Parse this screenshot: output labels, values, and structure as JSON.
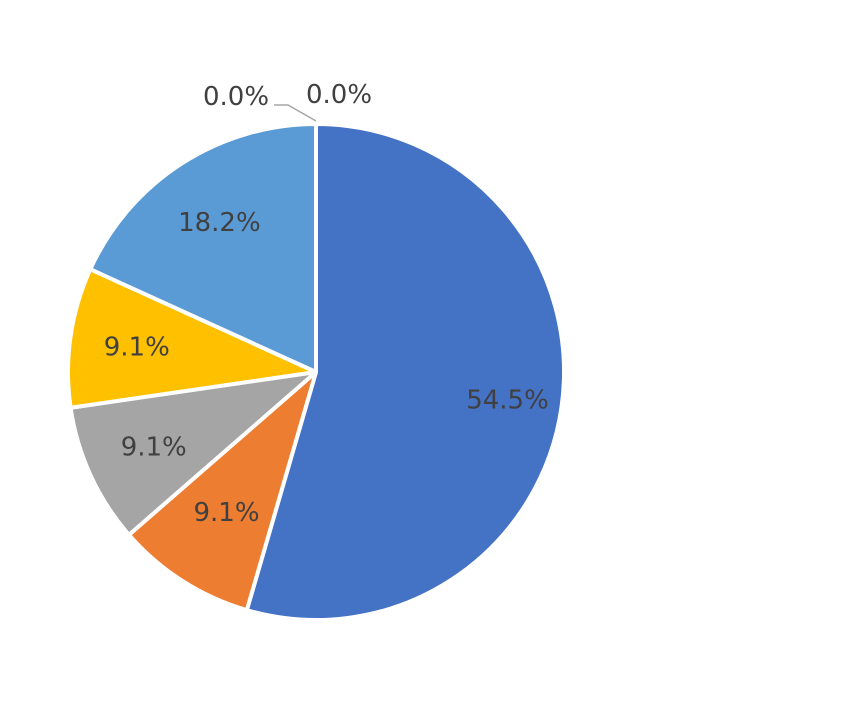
{
  "chart_data": {
    "type": "pie",
    "title": "",
    "legend": "none",
    "start_angle_deg": 0,
    "direction": "clockwise",
    "slices": [
      {
        "value": 54.5,
        "label": "54.5%",
        "color": "#4472C4"
      },
      {
        "value": 9.1,
        "label": "9.1%",
        "color": "#ED7D31"
      },
      {
        "value": 9.1,
        "label": "9.1%",
        "color": "#A5A5A5"
      },
      {
        "value": 9.1,
        "label": "9.1%",
        "color": "#FFC000"
      },
      {
        "value": 18.2,
        "label": "18.2%",
        "color": "#5B9BD5"
      },
      {
        "value": 0.0,
        "label": "0.0%",
        "color": "#70AD47"
      },
      {
        "value": 0.0,
        "label": "0.0%",
        "color": "#264478"
      }
    ]
  }
}
